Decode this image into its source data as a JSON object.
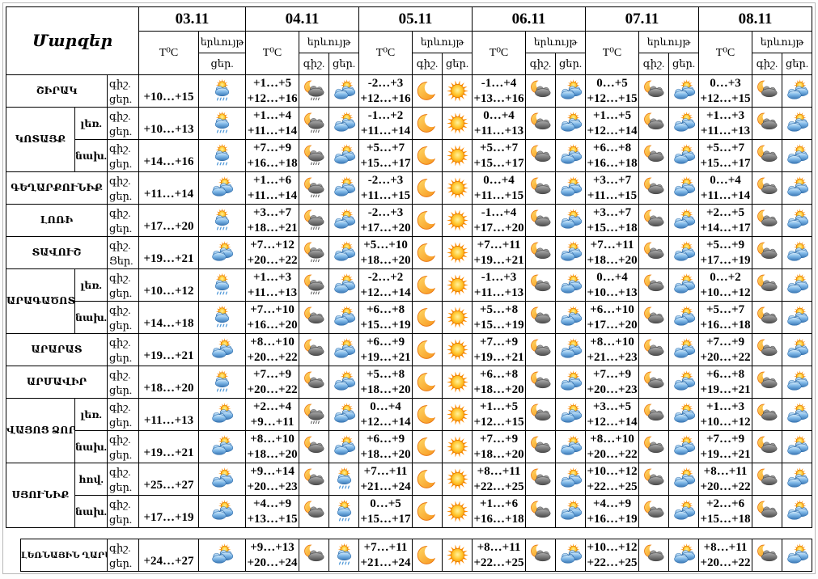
{
  "title": "Մարզեր",
  "header": {
    "temp": "T⁰C",
    "phenomenon": "երևույթ",
    "night": "գիշ.",
    "day": "ցեր."
  },
  "dates": [
    "03.11",
    "04.11",
    "05.11",
    "06.11",
    "07.11",
    "08.11"
  ],
  "colors": {
    "sun": "#FF9800",
    "sun_rays": "#FF8C00",
    "moon": "#F7941E",
    "day_cloud": "#3876B4",
    "night_cloud": "#4A4A4A",
    "day_rain": "#4C96D7",
    "night_rain": "#606060",
    "table_border": "#000000"
  },
  "groups": [
    {
      "region": "ՇԻՐԱԿ",
      "rows": [
        {
          "labels": [
            "գիշ.",
            "ցեր."
          ],
          "cells": [
            {
              "day": "+10…+15",
              "day_icon": "sun-cloud-rain"
            },
            {
              "night": "+1…+5",
              "day": "+12…+16",
              "night_icon": "moon-cloud-rain",
              "day_icon": "sun-cloud"
            },
            {
              "night": "-2…+3",
              "day": "+12…+16",
              "night_icon": "moon",
              "day_icon": "sun"
            },
            {
              "night": "-1…+4",
              "day": "+13…+16",
              "night_icon": "moon-cloud",
              "day_icon": "sun-cloud"
            },
            {
              "night": "0…+5",
              "day": "+12…+15",
              "night_icon": "moon-cloud",
              "day_icon": "sun-cloud"
            },
            {
              "night": "0…+3",
              "day": "+12…+15",
              "night_icon": "moon-cloud",
              "day_icon": "sun-cloud"
            }
          ]
        }
      ]
    },
    {
      "region": "ԿՈՏԱՅՔ",
      "rows": [
        {
          "sub": "լեռ.",
          "labels": [
            "գիշ.",
            "ցեր."
          ],
          "cells": [
            {
              "day": "+10…+13",
              "day_icon": "sun-cloud-rain"
            },
            {
              "night": "+1…+4",
              "day": "+11…+14",
              "night_icon": "moon-cloud-rain",
              "day_icon": "sun-cloud"
            },
            {
              "night": "-1…+2",
              "day": "+11…+14",
              "night_icon": "moon",
              "day_icon": "sun"
            },
            {
              "night": "0…+4",
              "day": "+11…+13",
              "night_icon": "moon-cloud",
              "day_icon": "sun-cloud"
            },
            {
              "night": "+1…+5",
              "day": "+12…+14",
              "night_icon": "moon-cloud",
              "day_icon": "sun-cloud"
            },
            {
              "night": "+1…+3",
              "day": "+11…+13",
              "night_icon": "moon-cloud",
              "day_icon": "sun-cloud"
            }
          ]
        },
        {
          "sub": "նախ.",
          "labels": [
            "գիշ.",
            "ցեր."
          ],
          "cells": [
            {
              "day": "+14…+16",
              "day_icon": "sun-cloud-rain"
            },
            {
              "night": "+7…+9",
              "day": "+16…+18",
              "night_icon": "moon-cloud-rain",
              "day_icon": "sun-cloud"
            },
            {
              "night": "+5…+7",
              "day": "+15…+17",
              "night_icon": "moon",
              "day_icon": "sun"
            },
            {
              "night": "+5…+7",
              "day": "+15…+17",
              "night_icon": "moon-cloud",
              "day_icon": "sun-cloud"
            },
            {
              "night": "+6…+8",
              "day": "+16…+18",
              "night_icon": "moon-cloud",
              "day_icon": "sun-cloud"
            },
            {
              "night": "+5…+7",
              "day": "+15…+17",
              "night_icon": "moon-cloud",
              "day_icon": "sun-cloud"
            }
          ]
        }
      ]
    },
    {
      "region": "ԳԵՂԱՐՔՈՒՆԻՔ",
      "rows": [
        {
          "labels": [
            "գիշ.",
            "ցեր."
          ],
          "cells": [
            {
              "day": "+11…+14",
              "day_icon": "sun-cloud"
            },
            {
              "night": "+1…+6",
              "day": "+11…+14",
              "night_icon": "moon-cloud-rain",
              "day_icon": "sun-cloud"
            },
            {
              "night": "-2…+3",
              "day": "+11…+15",
              "night_icon": "moon",
              "day_icon": "sun"
            },
            {
              "night": "0…+4",
              "day": "+11…+15",
              "night_icon": "moon-cloud",
              "day_icon": "sun-cloud"
            },
            {
              "night": "+3…+7",
              "day": "+11…+15",
              "night_icon": "moon-cloud",
              "day_icon": "sun-cloud"
            },
            {
              "night": "0…+4",
              "day": "+11…+14",
              "night_icon": "moon-cloud",
              "day_icon": "sun-cloud"
            }
          ]
        }
      ]
    },
    {
      "region": "ԼՈՌԻ",
      "rows": [
        {
          "labels": [
            "գիշ.",
            "ցեր."
          ],
          "cells": [
            {
              "day": "+17…+20",
              "day_icon": "sun-cloud-rain"
            },
            {
              "night": "+3…+7",
              "day": "+18…+21",
              "night_icon": "moon-cloud-rain",
              "day_icon": "sun-cloud"
            },
            {
              "night": "-2…+3",
              "day": "+17…+20",
              "night_icon": "moon",
              "day_icon": "sun"
            },
            {
              "night": "-1…+4",
              "day": "+17…+20",
              "night_icon": "moon-cloud",
              "day_icon": "sun-cloud"
            },
            {
              "night": "+3…+7",
              "day": "+15…+18",
              "night_icon": "moon-cloud",
              "day_icon": "sun-cloud"
            },
            {
              "night": "+2…+5",
              "day": "+14…+17",
              "night_icon": "moon-cloud",
              "day_icon": "sun-cloud"
            }
          ]
        }
      ]
    },
    {
      "region": "ՏԱՎՈՒՇ",
      "rows": [
        {
          "labels": [
            "գիշ.",
            "Ցեր."
          ],
          "cells": [
            {
              "day": "+19…+21",
              "day_icon": "sun-cloud"
            },
            {
              "night": "+7…+12",
              "day": "+20…+22",
              "night_icon": "moon-cloud-rain",
              "day_icon": "sun-cloud"
            },
            {
              "night": "+5…+10",
              "day": "+18…+20",
              "night_icon": "moon",
              "day_icon": "sun"
            },
            {
              "night": "+7…+11",
              "day": "+19…+21",
              "night_icon": "moon-cloud",
              "day_icon": "sun-cloud"
            },
            {
              "night": "+7…+11",
              "day": "+18…+20",
              "night_icon": "moon-cloud",
              "day_icon": "sun-cloud"
            },
            {
              "night": "+5…+9",
              "day": "+17…+19",
              "night_icon": "moon-cloud",
              "day_icon": "sun-cloud"
            }
          ]
        }
      ]
    },
    {
      "region": "ԱՐԱԳԱԾՈՏՆ",
      "rows": [
        {
          "sub": "լեռ.",
          "labels": [
            "գիշ.",
            "ցեր."
          ],
          "cells": [
            {
              "day": "+10…+12",
              "day_icon": "sun-cloud-rain"
            },
            {
              "night": "+1…+3",
              "day": "+11…+13",
              "night_icon": "moon-cloud-rain",
              "day_icon": "sun-cloud"
            },
            {
              "night": "-2…+2",
              "day": "+12…+14",
              "night_icon": "moon",
              "day_icon": "sun"
            },
            {
              "night": "-1…+3",
              "day": "+11…+13",
              "night_icon": "moon-cloud",
              "day_icon": "sun-cloud"
            },
            {
              "night": "0…+4",
              "day": "+10…+13",
              "night_icon": "moon-cloud",
              "day_icon": "sun-cloud"
            },
            {
              "night": "0…+2",
              "day": "+10…+12",
              "night_icon": "moon-cloud",
              "day_icon": "sun-cloud"
            }
          ]
        },
        {
          "sub": "նախ.",
          "labels": [
            "գիշ.",
            "ցեր."
          ],
          "cells": [
            {
              "day": "+14…+18",
              "day_icon": "sun-cloud-rain"
            },
            {
              "night": "+7…+10",
              "day": "+16…+20",
              "night_icon": "moon-cloud",
              "day_icon": "sun-cloud"
            },
            {
              "night": "+6…+8",
              "day": "+15…+19",
              "night_icon": "moon",
              "day_icon": "sun"
            },
            {
              "night": "+5…+8",
              "day": "+15…+19",
              "night_icon": "moon-cloud",
              "day_icon": "sun-cloud"
            },
            {
              "night": "+6…+10",
              "day": "+17…+20",
              "night_icon": "moon-cloud",
              "day_icon": "sun-cloud"
            },
            {
              "night": "+5…+7",
              "day": "+16…+18",
              "night_icon": "moon-cloud",
              "day_icon": "sun-cloud"
            }
          ]
        }
      ]
    },
    {
      "region": "ԱՐԱՐԱՏ",
      "rows": [
        {
          "labels": [
            "գիշ.",
            "ցեր."
          ],
          "cells": [
            {
              "day": "+19…+21",
              "day_icon": "sun-cloud"
            },
            {
              "night": "+8…+10",
              "day": "+20…+22",
              "night_icon": "moon-cloud",
              "day_icon": "sun-cloud"
            },
            {
              "night": "+6…+9",
              "day": "+19…+21",
              "night_icon": "moon",
              "day_icon": "sun"
            },
            {
              "night": "+7…+9",
              "day": "+19…+21",
              "night_icon": "moon-cloud",
              "day_icon": "sun-cloud"
            },
            {
              "night": "+8…+10",
              "day": "+21…+23",
              "night_icon": "moon-cloud",
              "day_icon": "sun-cloud"
            },
            {
              "night": "+7…+9",
              "day": "+20…+22",
              "night_icon": "moon-cloud",
              "day_icon": "sun-cloud"
            }
          ]
        }
      ]
    },
    {
      "region": "ԱՐՄԱՎԻՐ",
      "rows": [
        {
          "labels": [
            "գիշ.",
            "ցեր."
          ],
          "cells": [
            {
              "day": "+18…+20",
              "day_icon": "sun-cloud-rain"
            },
            {
              "night": "+7…+9",
              "day": "+20…+22",
              "night_icon": "moon-cloud",
              "day_icon": "sun-cloud"
            },
            {
              "night": "+5…+8",
              "day": "+18…+20",
              "night_icon": "moon",
              "day_icon": "sun"
            },
            {
              "night": "+6…+8",
              "day": "+18…+20",
              "night_icon": "moon-cloud",
              "day_icon": "sun-cloud"
            },
            {
              "night": "+7…+9",
              "day": "+20…+23",
              "night_icon": "moon-cloud",
              "day_icon": "sun-cloud"
            },
            {
              "night": "+6…+8",
              "day": "+19…+21",
              "night_icon": "moon-cloud",
              "day_icon": "sun-cloud"
            }
          ]
        }
      ]
    },
    {
      "region": "ՎԱՅՈՑ ՁՈՐ",
      "rows": [
        {
          "sub": "լեռ.",
          "labels": [
            "գիշ.",
            "ցեր."
          ],
          "cells": [
            {
              "day": "+11…+13",
              "day_icon": "sun-cloud"
            },
            {
              "night": "+2…+4",
              "day": "+9…+11",
              "night_icon": "moon-cloud-rain",
              "day_icon": "sun-cloud"
            },
            {
              "night": "0…+4",
              "day": "+12…+14",
              "night_icon": "moon",
              "day_icon": "sun"
            },
            {
              "night": "+1…+5",
              "day": "+12…+15",
              "night_icon": "moon-cloud",
              "day_icon": "sun-cloud"
            },
            {
              "night": "+3…+5",
              "day": "+12…+14",
              "night_icon": "moon-cloud",
              "day_icon": "sun-cloud"
            },
            {
              "night": "+1…+3",
              "day": "+10…+12",
              "night_icon": "moon-cloud",
              "day_icon": "sun-cloud"
            }
          ]
        },
        {
          "sub": "նախ.",
          "labels": [
            "գիշ.",
            "ցեր."
          ],
          "cells": [
            {
              "day": "+19…+21",
              "day_icon": "sun-cloud"
            },
            {
              "night": "+8…+10",
              "day": "+18…+20",
              "night_icon": "moon-cloud",
              "day_icon": "sun-cloud"
            },
            {
              "night": "+6…+9",
              "day": "+18…+20",
              "night_icon": "moon",
              "day_icon": "sun"
            },
            {
              "night": "+7…+9",
              "day": "+18…+20",
              "night_icon": "moon-cloud",
              "day_icon": "sun-cloud"
            },
            {
              "night": "+8…+10",
              "day": "+20…+22",
              "night_icon": "moon-cloud",
              "day_icon": "sun-cloud"
            },
            {
              "night": "+7…+9",
              "day": "+19…+21",
              "night_icon": "moon-cloud",
              "day_icon": "sun-cloud"
            }
          ]
        }
      ]
    },
    {
      "region": "ՍՅՈՒՆԻՔ",
      "rows": [
        {
          "sub": "հով.",
          "labels": [
            "գիշ.",
            "ցեր."
          ],
          "cells": [
            {
              "day": "+25…+27",
              "day_icon": "sun-cloud"
            },
            {
              "night": "+9…+14",
              "day": "+20…+23",
              "night_icon": "moon-cloud",
              "day_icon": "sun-cloud-rain"
            },
            {
              "night": "+7…+11",
              "day": "+21…+24",
              "night_icon": "moon",
              "day_icon": "sun"
            },
            {
              "night": "+8…+11",
              "day": "+22…+25",
              "night_icon": "moon-cloud",
              "day_icon": "sun-cloud"
            },
            {
              "night": "+10…+12",
              "day": "+22…+25",
              "night_icon": "moon-cloud",
              "day_icon": "sun-cloud"
            },
            {
              "night": "+8…+11",
              "day": "+20…+22",
              "night_icon": "moon-cloud",
              "day_icon": "sun-cloud"
            }
          ]
        },
        {
          "sub": "նախ.",
          "labels": [
            "գիշ.",
            "ցեր."
          ],
          "cells": [
            {
              "day": "+17…+19",
              "day_icon": "sun-cloud"
            },
            {
              "night": "+4…+9",
              "day": "+13…+15",
              "night_icon": "moon-cloud",
              "day_icon": "sun-cloud-rain"
            },
            {
              "night": "0…+5",
              "day": "+15…+17",
              "night_icon": "moon",
              "day_icon": "sun"
            },
            {
              "night": "+1…+6",
              "day": "+16…+18",
              "night_icon": "moon-cloud",
              "day_icon": "sun-cloud"
            },
            {
              "night": "+4…+9",
              "day": "+16…+19",
              "night_icon": "moon-cloud",
              "day_icon": "sun-cloud"
            },
            {
              "night": "+2…+6",
              "day": "+15…+18",
              "night_icon": "moon-cloud",
              "day_icon": "sun-cloud"
            }
          ]
        }
      ]
    }
  ],
  "footer": {
    "region": "ԼԵՌՆԱՅԻՆ ՂԱՐԱԲԱՂ",
    "labels": [
      "գիշ.",
      "ցեր."
    ],
    "cells": [
      {
        "day": "+24…+27",
        "day_icon": "sun-cloud"
      },
      {
        "night": "+9…+13",
        "day": "+20…+24",
        "night_icon": "moon-cloud",
        "day_icon": "sun-cloud-rain"
      },
      {
        "night": "+7…+11",
        "day": "+21…+24",
        "night_icon": "moon",
        "day_icon": "sun"
      },
      {
        "night": "+8…+11",
        "day": "+22…+25",
        "night_icon": "moon-cloud",
        "day_icon": "sun-cloud"
      },
      {
        "night": "+10…+12",
        "day": "+22…+25",
        "night_icon": "moon-cloud",
        "day_icon": "sun-cloud"
      },
      {
        "night": "+8…+11",
        "day": "+20…+22",
        "night_icon": "moon-cloud",
        "day_icon": "sun-cloud"
      }
    ]
  }
}
